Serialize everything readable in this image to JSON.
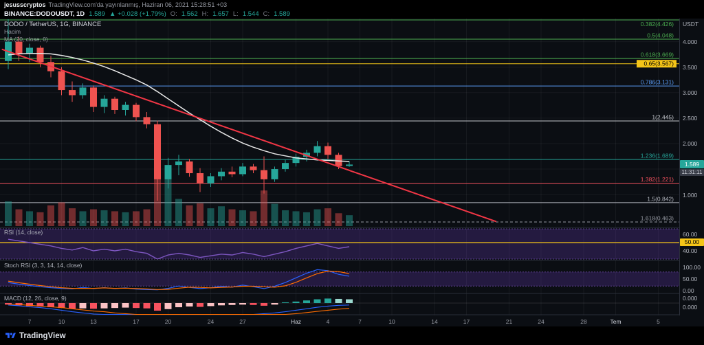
{
  "header": {
    "username": "jesusscryptos",
    "published": "TradingView.com'da yayınlanmış, Haziran 06, 2021 15:28:51 +03"
  },
  "symbol_bar": {
    "symbol": "BINANCE:DODOUSDT, 1D",
    "price": "1.589",
    "change": "▲ +0.028 (+1.79%)",
    "ohlc": {
      "o_label": "O:",
      "o": "1.562",
      "h_label": "H:",
      "h": "1.657",
      "l_label": "L:",
      "l": "1.544",
      "c_label": "C:",
      "c": "1.589"
    }
  },
  "legend": {
    "title": "DODO / TetherUS, 1G, BINANCE",
    "volume_label": "Hacim",
    "ma_label": "MA (20, close, 0)"
  },
  "indicators": {
    "rsi_label": "RSI (14, close)",
    "stoch_label": "Stoch RSI (3, 3, 14, 14, close)",
    "macd_label": "MACD (12, 26, close, 9)"
  },
  "price_scale": {
    "currency": "USDT",
    "ticks": [
      "4.000",
      "3.500",
      "3.000",
      "2.500",
      "2.000",
      "1.000"
    ],
    "last_badge": {
      "price": "1.589",
      "countdown": "11:31:11"
    },
    "rsi_ticks": [
      "60.00",
      "50.00",
      "40.00"
    ],
    "stoch_ticks": [
      "100.00",
      "50.00",
      "0.00"
    ],
    "macd_ticks": [
      "0.000",
      "0.000"
    ]
  },
  "time_axis": [
    {
      "label": "7",
      "index": 2
    },
    {
      "label": "10",
      "index": 5
    },
    {
      "label": "13",
      "index": 8
    },
    {
      "label": "17",
      "index": 12
    },
    {
      "label": "20",
      "index": 15
    },
    {
      "label": "24",
      "index": 19
    },
    {
      "label": "27",
      "index": 22
    },
    {
      "label": "Haz",
      "index": 27,
      "month": true
    },
    {
      "label": "4",
      "index": 30
    },
    {
      "label": "7",
      "index": 33
    },
    {
      "label": "10",
      "index": 36
    },
    {
      "label": "14",
      "index": 40
    },
    {
      "label": "17",
      "index": 43
    },
    {
      "label": "21",
      "index": 47
    },
    {
      "label": "24",
      "index": 50
    },
    {
      "label": "28",
      "index": 54
    },
    {
      "label": "Tem",
      "index": 57,
      "month": true
    },
    {
      "label": "5",
      "index": 61
    }
  ],
  "footer": {
    "brand": "TradingView"
  },
  "chart_data": {
    "type": "candlestick",
    "title": "DODO / TetherUS",
    "exchange": "BINANCE",
    "interval": "1G",
    "ylim": [
      0.36,
      4.45
    ],
    "candles": [
      [
        3.62,
        4.44,
        3.46,
        4.0
      ],
      [
        4.0,
        4.1,
        3.62,
        3.76
      ],
      [
        3.76,
        3.96,
        3.6,
        3.88
      ],
      [
        3.88,
        3.92,
        3.5,
        3.6
      ],
      [
        3.6,
        3.72,
        3.3,
        3.42
      ],
      [
        3.42,
        3.5,
        2.95,
        3.05
      ],
      [
        3.05,
        3.22,
        2.82,
        2.95
      ],
      [
        2.95,
        3.18,
        2.88,
        3.1
      ],
      [
        3.1,
        3.14,
        2.62,
        2.72
      ],
      [
        2.72,
        2.95,
        2.6,
        2.88
      ],
      [
        2.88,
        2.92,
        2.58,
        2.66
      ],
      [
        2.66,
        2.82,
        2.55,
        2.76
      ],
      [
        2.76,
        2.8,
        2.44,
        2.52
      ],
      [
        2.52,
        2.62,
        2.3,
        2.38
      ],
      [
        2.38,
        2.45,
        0.88,
        1.3
      ],
      [
        1.3,
        1.72,
        1.12,
        1.58
      ],
      [
        1.58,
        1.78,
        1.38,
        1.65
      ],
      [
        1.65,
        1.7,
        1.35,
        1.42
      ],
      [
        1.42,
        1.52,
        1.05,
        1.22
      ],
      [
        1.22,
        1.42,
        1.15,
        1.36
      ],
      [
        1.36,
        1.52,
        1.28,
        1.45
      ],
      [
        1.45,
        1.55,
        1.34,
        1.4
      ],
      [
        1.4,
        1.62,
        1.36,
        1.55
      ],
      [
        1.55,
        1.6,
        1.42,
        1.48
      ],
      [
        1.48,
        1.75,
        1.02,
        1.3
      ],
      [
        1.3,
        1.55,
        1.25,
        1.5
      ],
      [
        1.5,
        1.68,
        1.45,
        1.62
      ],
      [
        1.62,
        1.8,
        1.55,
        1.74
      ],
      [
        1.74,
        1.88,
        1.65,
        1.82
      ],
      [
        1.82,
        2.05,
        1.75,
        1.95
      ],
      [
        1.95,
        2.02,
        1.7,
        1.78
      ],
      [
        1.78,
        1.82,
        1.5,
        1.56
      ],
      [
        1.562,
        1.657,
        1.544,
        1.589
      ]
    ],
    "volume": [
      0.5,
      0.34,
      0.3,
      0.28,
      0.42,
      0.48,
      0.36,
      0.3,
      0.34,
      0.32,
      0.3,
      0.28,
      0.3,
      0.34,
      0.96,
      1.0,
      0.55,
      0.42,
      0.46,
      0.36,
      0.4,
      0.34,
      0.32,
      0.3,
      0.72,
      0.45,
      0.32,
      0.3,
      0.28,
      0.34,
      0.36,
      0.26,
      0.22
    ],
    "ma20": [
      3.74,
      3.76,
      3.77,
      3.77,
      3.76,
      3.73,
      3.69,
      3.64,
      3.58,
      3.51,
      3.43,
      3.34,
      3.25,
      3.15,
      3.02,
      2.88,
      2.74,
      2.6,
      2.47,
      2.34,
      2.22,
      2.11,
      2.01,
      1.93,
      1.86,
      1.8,
      1.76,
      1.72,
      1.7,
      1.68,
      1.67,
      1.66,
      1.65
    ],
    "trendline": {
      "x1": -0.6,
      "price1": 3.85,
      "x2": 45.8,
      "price2": 0.47
    },
    "fib_levels": [
      {
        "label": "0.382(4.426)",
        "price": 4.426,
        "color": "#4caf50"
      },
      {
        "label": "0.5(4.048)",
        "price": 4.048,
        "color": "#4caf50"
      },
      {
        "label": "0.618(3.669)",
        "price": 3.669,
        "color": "#4caf50"
      },
      {
        "label": "0.65(3.567)",
        "price": 3.567,
        "color": "#f5c518",
        "bg": true
      },
      {
        "label": "0.786(3.131)",
        "price": 3.131,
        "color": "#5b9cf6"
      },
      {
        "label": "1(2.445)",
        "price": 2.445,
        "color": "#c5c8ce"
      },
      {
        "label": "1.236(1.689)",
        "price": 1.689,
        "color": "#26a69a"
      },
      {
        "label": "1.382(1.221)",
        "price": 1.221,
        "color": "#f7525f"
      },
      {
        "label": "1.5(0.842)",
        "price": 0.842,
        "color": "#b2b5be"
      },
      {
        "label": "1.618(0.463)",
        "price": 0.463,
        "color": "#9598a1",
        "dashed": true
      }
    ],
    "rsi": [
      54,
      52,
      50,
      48,
      46,
      43,
      41,
      44,
      40,
      42,
      40,
      42,
      39,
      37,
      30,
      35,
      37,
      35,
      32,
      34,
      36,
      35,
      38,
      36,
      33,
      36,
      39,
      43,
      46,
      49,
      46,
      43,
      45
    ],
    "stoch_k": [
      35,
      28,
      22,
      17,
      13,
      10,
      8,
      14,
      9,
      13,
      9,
      12,
      7,
      5,
      4,
      10,
      20,
      14,
      9,
      13,
      19,
      15,
      24,
      17,
      9,
      19,
      35,
      55,
      75,
      90,
      86,
      70,
      62
    ],
    "stoch_d": [
      41,
      34,
      28,
      22,
      17,
      13,
      10,
      10,
      10,
      12,
      10,
      11,
      9,
      8,
      5,
      6,
      11,
      15,
      14,
      12,
      14,
      16,
      19,
      19,
      17,
      15,
      21,
      36,
      55,
      73,
      84,
      82,
      73
    ],
    "macd": [
      -0.05,
      -0.07,
      -0.1,
      -0.12,
      -0.15,
      -0.19,
      -0.23,
      -0.26,
      -0.29,
      -0.31,
      -0.33,
      -0.35,
      -0.37,
      -0.39,
      -0.43,
      -0.45,
      -0.45,
      -0.44,
      -0.43,
      -0.41,
      -0.39,
      -0.36,
      -0.33,
      -0.3,
      -0.28,
      -0.26,
      -0.23,
      -0.19,
      -0.15,
      -0.11,
      -0.08,
      -0.06,
      -0.05
    ],
    "macd_signal": [
      -0.03,
      -0.04,
      -0.06,
      -0.08,
      -0.1,
      -0.12,
      -0.15,
      -0.18,
      -0.21,
      -0.23,
      -0.26,
      -0.28,
      -0.3,
      -0.32,
      -0.34,
      -0.37,
      -0.39,
      -0.4,
      -0.41,
      -0.41,
      -0.41,
      -0.4,
      -0.39,
      -0.37,
      -0.35,
      -0.33,
      -0.31,
      -0.28,
      -0.25,
      -0.22,
      -0.19,
      -0.16,
      -0.14
    ],
    "macd_hist": [
      -0.04,
      -0.06,
      -0.08,
      -0.09,
      -0.11,
      -0.13,
      -0.15,
      -0.14,
      -0.15,
      -0.14,
      -0.13,
      -0.12,
      -0.13,
      -0.14,
      -0.2,
      -0.16,
      -0.11,
      -0.09,
      -0.1,
      -0.08,
      -0.06,
      -0.05,
      -0.04,
      -0.05,
      -0.07,
      -0.04,
      0.02,
      0.04,
      0.07,
      0.1,
      0.12,
      0.11,
      0.1
    ],
    "colors": {
      "up": "#26a69a",
      "down": "#ef5350",
      "ma": "#e8e8e8",
      "trend": "#f23645",
      "rsi": "#7e57c2",
      "rsi_mid": "#f5c518",
      "stoch_k": "#2962ff",
      "stoch_d": "#ff6d00",
      "macd": "#2962ff",
      "signal": "#ff6d00",
      "hist_pos": "#26a69a",
      "hist_pos_weak": "#9cd9d0",
      "hist_neg": "#f7525f",
      "hist_neg_weak": "#fbc2c4",
      "band_fill": "rgba(103,58,183,0.28)",
      "band_edge": "#7e57c2"
    }
  }
}
